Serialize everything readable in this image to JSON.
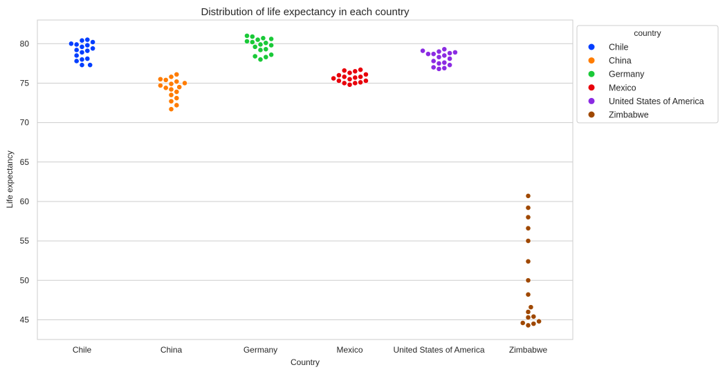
{
  "chart_data": {
    "type": "scatter",
    "subtype": "swarm",
    "title": "Distribution of life expectancy in each country",
    "xlabel": "Country",
    "ylabel": "Life expectancy",
    "ylim": [
      42.5,
      83
    ],
    "yticks": [
      45,
      50,
      55,
      60,
      65,
      70,
      75,
      80
    ],
    "categories": [
      "Chile",
      "China",
      "Germany",
      "Mexico",
      "United States of America",
      "Zimbabwe"
    ],
    "grid": true,
    "legend": {
      "title": "country",
      "placement": "outside-top-right"
    },
    "series": [
      {
        "name": "Chile",
        "color": "#023eff",
        "values": [
          77.3,
          77.3,
          77.8,
          78.0,
          78.1,
          78.5,
          78.9,
          79.1,
          79.2,
          79.4,
          79.6,
          79.8,
          79.9,
          80.0,
          80.2,
          80.4,
          80.5
        ]
      },
      {
        "name": "China",
        "color": "#ff7c00",
        "values": [
          71.7,
          72.2,
          72.7,
          73.1,
          73.5,
          73.9,
          74.2,
          74.4,
          74.5,
          74.7,
          74.9,
          75.0,
          75.2,
          75.4,
          75.5,
          75.8,
          76.1
        ]
      },
      {
        "name": "Germany",
        "color": "#1ac938",
        "values": [
          78.0,
          78.3,
          78.4,
          78.6,
          79.2,
          79.3,
          79.6,
          79.8,
          79.9,
          80.1,
          80.2,
          80.3,
          80.5,
          80.6,
          80.7,
          80.9,
          81.0
        ]
      },
      {
        "name": "Mexico",
        "color": "#e8000b",
        "values": [
          74.8,
          75.0,
          75.0,
          75.1,
          75.3,
          75.3,
          75.5,
          75.6,
          75.7,
          75.8,
          75.8,
          76.0,
          76.1,
          76.3,
          76.5,
          76.6,
          76.7
        ]
      },
      {
        "name": "United States of America",
        "color": "#8b2be2",
        "values": [
          76.8,
          76.9,
          77.0,
          77.3,
          77.5,
          77.6,
          77.8,
          78.1,
          78.3,
          78.5,
          78.7,
          78.7,
          78.8,
          78.9,
          79.0,
          79.1,
          79.3
        ]
      },
      {
        "name": "Zimbabwe",
        "color": "#9f4800",
        "values": [
          44.3,
          44.5,
          44.6,
          44.8,
          45.3,
          45.4,
          46.0,
          46.6,
          48.2,
          50.0,
          52.4,
          55.0,
          56.6,
          58.0,
          59.2,
          60.7
        ]
      }
    ]
  }
}
